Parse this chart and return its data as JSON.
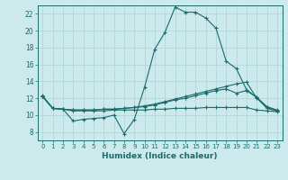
{
  "background_color": "#cce9ec",
  "grid_color": "#b0d8dc",
  "line_color": "#1a6b6b",
  "xlabel": "Humidex (Indice chaleur)",
  "xlim": [
    -0.5,
    23.5
  ],
  "ylim": [
    7.0,
    23.0
  ],
  "yticks": [
    8,
    10,
    12,
    14,
    16,
    18,
    20,
    22
  ],
  "xticks": [
    0,
    1,
    2,
    3,
    4,
    5,
    6,
    7,
    8,
    9,
    10,
    11,
    12,
    13,
    14,
    15,
    16,
    17,
    18,
    19,
    20,
    21,
    22,
    23
  ],
  "series1": {
    "x": [
      0,
      1,
      2,
      3,
      4,
      5,
      6,
      7,
      8,
      9,
      10,
      11,
      12,
      13,
      14,
      15,
      16,
      17,
      18,
      19,
      20,
      21,
      22,
      23
    ],
    "y": [
      12.3,
      10.8,
      10.7,
      9.3,
      9.5,
      9.6,
      9.7,
      10.0,
      7.8,
      9.5,
      13.3,
      17.8,
      19.8,
      22.8,
      22.2,
      22.2,
      21.5,
      20.3,
      16.4,
      15.5,
      13.0,
      12.1,
      11.0,
      10.6
    ]
  },
  "series2": {
    "x": [
      0,
      1,
      2,
      3,
      4,
      5,
      6,
      7,
      8,
      9,
      10,
      11,
      12,
      13,
      14,
      15,
      16,
      17,
      18,
      19,
      20,
      21,
      22,
      23
    ],
    "y": [
      12.2,
      10.8,
      10.7,
      10.6,
      10.6,
      10.6,
      10.7,
      10.7,
      10.8,
      10.9,
      11.1,
      11.3,
      11.6,
      11.9,
      12.2,
      12.5,
      12.8,
      13.1,
      13.4,
      13.7,
      13.9,
      12.0,
      10.9,
      10.5
    ]
  },
  "series3": {
    "x": [
      0,
      1,
      2,
      3,
      4,
      5,
      6,
      7,
      8,
      9,
      10,
      11,
      12,
      13,
      14,
      15,
      16,
      17,
      18,
      19,
      20,
      21,
      22,
      23
    ],
    "y": [
      12.2,
      10.8,
      10.7,
      10.6,
      10.6,
      10.6,
      10.7,
      10.7,
      10.8,
      10.9,
      11.0,
      11.2,
      11.5,
      11.8,
      12.0,
      12.3,
      12.6,
      12.9,
      13.1,
      12.6,
      12.9,
      12.1,
      10.8,
      10.5
    ]
  },
  "series4": {
    "x": [
      0,
      1,
      2,
      3,
      4,
      5,
      6,
      7,
      8,
      9,
      10,
      11,
      12,
      13,
      14,
      15,
      16,
      17,
      18,
      19,
      20,
      21,
      22,
      23
    ],
    "y": [
      12.2,
      10.8,
      10.7,
      10.5,
      10.5,
      10.5,
      10.5,
      10.6,
      10.6,
      10.6,
      10.6,
      10.7,
      10.7,
      10.8,
      10.8,
      10.8,
      10.9,
      10.9,
      10.9,
      10.9,
      10.9,
      10.6,
      10.5,
      10.4
    ]
  }
}
